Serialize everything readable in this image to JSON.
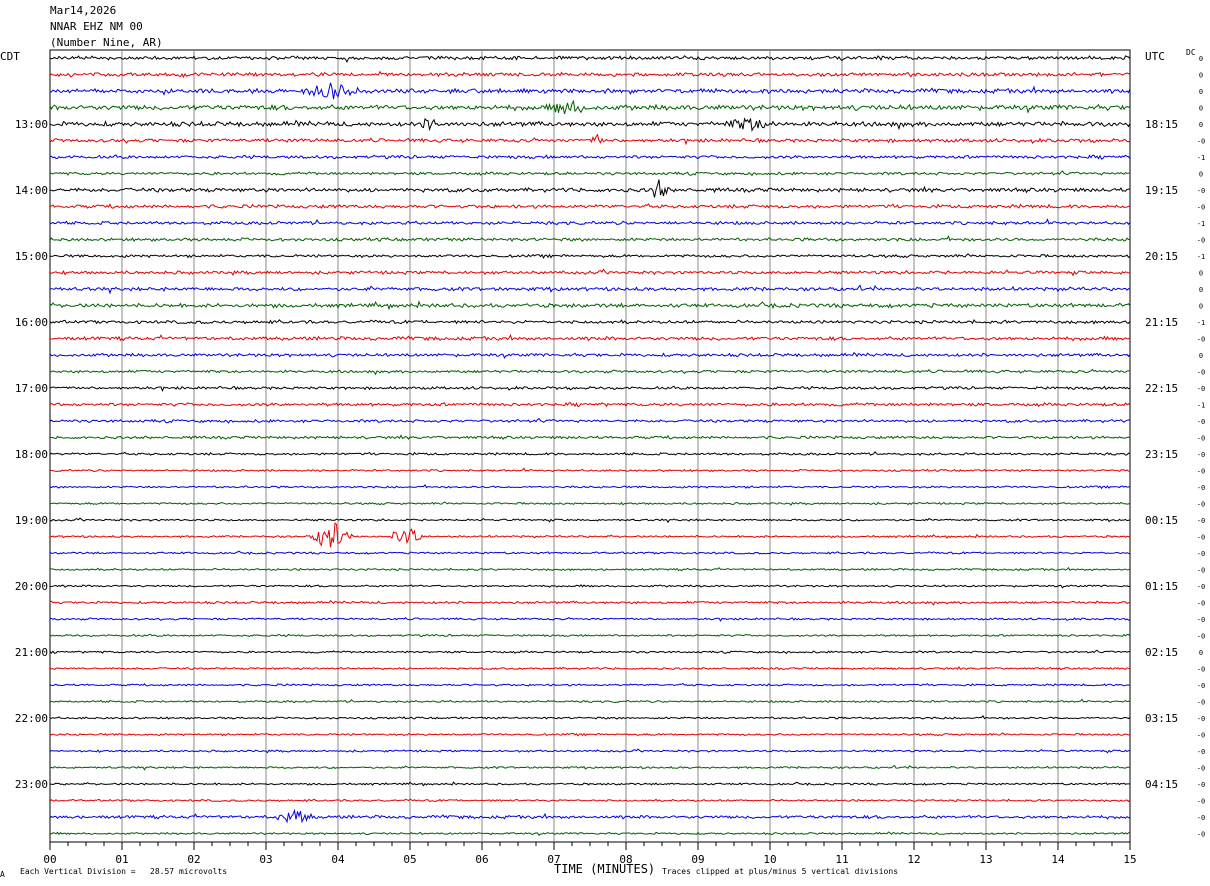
{
  "header": {
    "date": "Mar14,2026",
    "station": "NNAR EHZ NM 00",
    "location": "(Number Nine, AR)"
  },
  "left_zone": "CDT",
  "right_zone": "UTC",
  "dc_label": "DC",
  "footer": {
    "xlabel": "TIME (MINUTES)",
    "scale_note": "Each Vertical Division =   28.57 microvolts",
    "clip_note": "Traces clipped at plus/minus 5 vertical divisions",
    "corner_mark": "A"
  },
  "colors": {
    "trace_cycle": [
      "#000000",
      "#e00000",
      "#0000e0",
      "#006000"
    ],
    "grid": "#8a8a8a"
  },
  "chart_data": {
    "type": "line",
    "title": "",
    "xlabel": "TIME (MINUTES)",
    "xlim": [
      0,
      15
    ],
    "x_ticks": [
      "00",
      "01",
      "02",
      "03",
      "04",
      "05",
      "06",
      "07",
      "08",
      "09",
      "10",
      "11",
      "12",
      "13",
      "14",
      "15"
    ],
    "rows": 48,
    "rows_per_hour": 4,
    "left_hour_labels": [
      "13:00",
      "14:00",
      "15:00",
      "16:00",
      "17:00",
      "18:00",
      "19:00",
      "20:00",
      "21:00",
      "22:00",
      "23:00"
    ],
    "right_hour_labels": [
      "18:15",
      "19:15",
      "20:15",
      "21:15",
      "22:15",
      "23:15",
      "00:15",
      "01:15",
      "02:15",
      "03:15",
      "04:15"
    ],
    "dc_offsets": [
      "0",
      "0",
      "0",
      "0",
      "0",
      "-0",
      "-1",
      "0",
      "-0",
      "-0",
      "-1",
      "-0",
      "-1",
      "0",
      "0",
      "0",
      "-1",
      "-0",
      "0",
      "-0",
      "-0",
      "-1",
      "-0",
      "-0",
      "-0",
      "-0",
      "-0",
      "-0",
      "-0",
      "-0",
      "-0",
      "-0",
      "-0",
      "-0",
      "-0",
      "-0",
      "0",
      "-0",
      "-0",
      "-0",
      "-0",
      "-0",
      "-0",
      "-0",
      "-0",
      "-0",
      "-0",
      "-0"
    ],
    "noise_levels": [
      0.9,
      0.9,
      1.1,
      1.3,
      1.2,
      0.9,
      0.8,
      0.7,
      1.0,
      0.9,
      0.8,
      0.8,
      0.7,
      0.8,
      0.9,
      1.0,
      0.8,
      0.9,
      0.8,
      0.7,
      0.7,
      0.8,
      0.7,
      0.7,
      0.6,
      0.5,
      0.5,
      0.5,
      0.5,
      0.5,
      0.5,
      0.5,
      0.5,
      0.6,
      0.5,
      0.5,
      0.5,
      0.5,
      0.5,
      0.5,
      0.5,
      0.5,
      0.5,
      0.5,
      0.5,
      0.5,
      0.8,
      0.5
    ],
    "events": [
      {
        "row": 2,
        "minute": 3.9,
        "amplitude": 2.5,
        "duration": 0.5
      },
      {
        "row": 3,
        "minute": 7.2,
        "amplitude": 2.5,
        "duration": 0.3
      },
      {
        "row": 4,
        "minute": 5.3,
        "amplitude": 2.0,
        "duration": 0.2
      },
      {
        "row": 4,
        "minute": 9.7,
        "amplitude": 2.0,
        "duration": 0.4
      },
      {
        "row": 5,
        "minute": 7.6,
        "amplitude": 2.0,
        "duration": 0.1
      },
      {
        "row": 8,
        "minute": 8.45,
        "amplitude": 4.0,
        "duration": 0.15
      },
      {
        "row": 29,
        "minute": 3.9,
        "amplitude": 6.0,
        "duration": 0.3
      },
      {
        "row": 29,
        "minute": 4.95,
        "amplitude": 3.5,
        "duration": 0.3
      },
      {
        "row": 46,
        "minute": 3.4,
        "amplitude": 2.5,
        "duration": 0.3
      }
    ]
  }
}
